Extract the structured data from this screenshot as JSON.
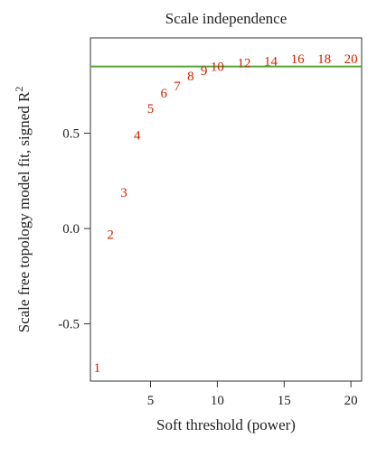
{
  "chart_data": {
    "type": "scatter",
    "title": "Scale independence",
    "xlabel": "Soft threshold (power)",
    "ylabel_main": "Scale free topology model fit, signed R",
    "ylabel_sup": "2",
    "x": [
      1,
      2,
      3,
      4,
      5,
      6,
      7,
      8,
      9,
      10,
      12,
      14,
      16,
      18,
      20
    ],
    "y": [
      -0.73,
      -0.03,
      0.19,
      0.49,
      0.63,
      0.71,
      0.75,
      0.8,
      0.83,
      0.85,
      0.87,
      0.88,
      0.89,
      0.89,
      0.89
    ],
    "point_labels": [
      "1",
      "2",
      "3",
      "4",
      "5",
      "6",
      "7",
      "8",
      "9",
      "10",
      "12",
      "14",
      "16",
      "18",
      "20"
    ],
    "xlim": [
      0.5,
      20.8
    ],
    "ylim": [
      -0.8,
      1.0
    ],
    "xticks": [
      5,
      10,
      15,
      20
    ],
    "xtick_labels": [
      "5",
      "10",
      "15",
      "20"
    ],
    "yticks": [
      -0.5,
      0.0,
      0.5
    ],
    "ytick_labels": [
      "-0.5",
      "0.0",
      "0.5"
    ],
    "threshold_line": 0.85,
    "label_color": "#cc2200",
    "threshold_color": "#55a630",
    "grid": false
  }
}
